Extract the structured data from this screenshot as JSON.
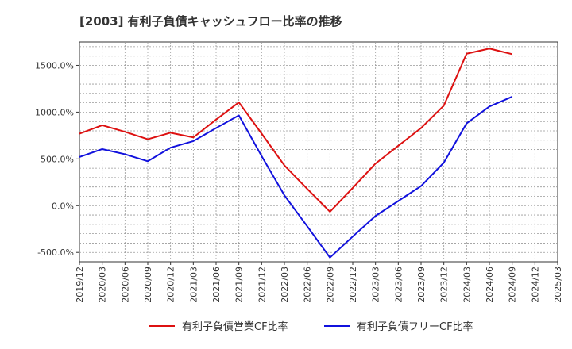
{
  "chart_data": {
    "type": "line",
    "title": "[2003]  有利子負債キャッシュフロー比率の推移",
    "xlabel": "",
    "ylabel": "",
    "x_ticks": [
      "2019/12",
      "2020/03",
      "2020/06",
      "2020/09",
      "2020/12",
      "2021/03",
      "2021/06",
      "2021/09",
      "2021/12",
      "2022/03",
      "2022/06",
      "2022/09",
      "2022/12",
      "2023/03",
      "2023/06",
      "2023/09",
      "2023/12",
      "2024/03",
      "2024/06",
      "2024/09",
      "2024/12",
      "2025/03"
    ],
    "y_ticks": [
      "1500.0%",
      "1000.0%",
      "500.0%",
      "0.0%",
      "-500.0%"
    ],
    "y_tick_values": [
      1500,
      1000,
      500,
      0,
      -500
    ],
    "ylim": [
      -600,
      1750
    ],
    "grid": true,
    "legend_position": "bottom",
    "x": [
      "2019/12",
      "2020/03",
      "2020/06",
      "2020/09",
      "2020/12",
      "2021/03",
      "2021/06",
      "2021/09",
      "2021/12",
      "2022/03",
      "2022/06",
      "2022/09",
      "2022/12",
      "2023/03",
      "2023/06",
      "2023/09",
      "2023/12",
      "2024/03",
      "2024/06",
      "2024/09"
    ],
    "series": [
      {
        "name": "有利子負債営業CF比率",
        "color": "#dd1111",
        "values": [
          770,
          860,
          790,
          710,
          780,
          730,
          920,
          1105,
          770,
          430,
          180,
          -65,
          190,
          450,
          640,
          830,
          1070,
          1625,
          1680,
          1620
        ]
      },
      {
        "name": "有利子負債フリーCF比率",
        "color": "#1111dd",
        "values": [
          520,
          605,
          550,
          475,
          620,
          690,
          830,
          965,
          530,
          110,
          -220,
          -555,
          -330,
          -110,
          50,
          210,
          460,
          880,
          1060,
          1165
        ]
      }
    ]
  }
}
